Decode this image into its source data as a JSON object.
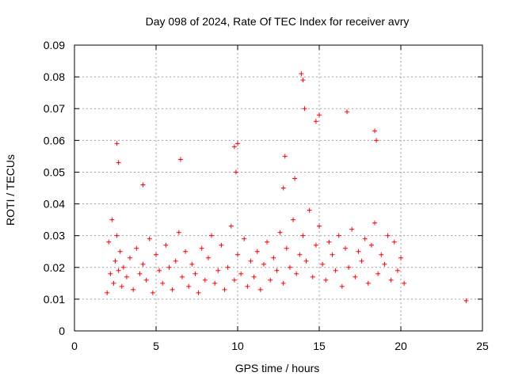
{
  "chart_data": {
    "type": "scatter",
    "title": "Day 098 of 2024, Rate Of TEC Index for receiver avry",
    "xlabel": "GPS time / hours",
    "ylabel": "ROTI / TECUs",
    "xlim": [
      0,
      25
    ],
    "ylim": [
      0,
      0.09
    ],
    "xticks": [
      "0",
      "5",
      "10",
      "15",
      "20",
      "25"
    ],
    "yticks": [
      "0",
      "0.01",
      "0.02",
      "0.03",
      "0.04",
      "0.05",
      "0.06",
      "0.07",
      "0.08",
      "0.09"
    ],
    "grid": true,
    "marker": "plus",
    "color": "#ff0000",
    "series": [
      {
        "x": [
          2.0,
          2.1,
          2.2,
          2.3,
          2.4,
          2.5,
          2.6,
          2.7,
          2.8,
          2.9,
          3.0,
          3.2,
          3.4,
          3.6,
          3.8,
          4.0,
          4.2,
          4.4,
          4.6,
          4.8,
          5.0,
          5.2,
          5.4,
          5.6,
          5.8,
          6.0,
          6.2,
          6.4,
          6.6,
          6.8,
          7.0,
          7.2,
          7.4,
          7.6,
          7.8,
          8.0,
          8.2,
          8.4,
          8.6,
          8.8,
          9.0,
          9.2,
          9.4,
          9.6,
          9.8,
          10.0,
          10.2,
          10.4,
          10.6,
          10.8,
          11.0,
          11.2,
          11.4,
          11.6,
          11.8,
          12.0,
          12.2,
          12.4,
          12.6,
          12.8,
          13.0,
          13.2,
          13.4,
          13.6,
          13.8,
          14.0,
          14.2,
          14.4,
          14.6,
          14.8,
          15.0,
          15.2,
          15.4,
          15.6,
          15.8,
          16.0,
          16.2,
          16.4,
          16.6,
          16.8,
          17.0,
          17.2,
          17.4,
          17.6,
          17.8,
          18.0,
          18.2,
          18.4,
          18.6,
          18.8,
          19.0,
          19.2,
          19.4,
          19.6,
          19.8,
          20.0,
          20.2,
          2.6,
          2.7,
          6.5,
          9.8,
          10.0,
          12.9,
          13.9,
          14.0,
          14.1,
          14.8,
          15.0,
          16.7,
          18.4,
          18.5,
          4.2,
          9.9,
          12.8,
          13.5,
          24.0
        ],
        "y": [
          0.012,
          0.028,
          0.018,
          0.035,
          0.015,
          0.022,
          0.03,
          0.019,
          0.025,
          0.014,
          0.02,
          0.017,
          0.023,
          0.013,
          0.026,
          0.018,
          0.021,
          0.016,
          0.029,
          0.012,
          0.024,
          0.019,
          0.015,
          0.027,
          0.02,
          0.013,
          0.022,
          0.031,
          0.017,
          0.025,
          0.014,
          0.021,
          0.018,
          0.012,
          0.026,
          0.016,
          0.023,
          0.03,
          0.015,
          0.019,
          0.027,
          0.013,
          0.02,
          0.033,
          0.016,
          0.024,
          0.018,
          0.029,
          0.014,
          0.022,
          0.017,
          0.025,
          0.013,
          0.021,
          0.028,
          0.016,
          0.023,
          0.019,
          0.031,
          0.015,
          0.026,
          0.02,
          0.035,
          0.018,
          0.024,
          0.03,
          0.022,
          0.038,
          0.017,
          0.027,
          0.033,
          0.021,
          0.016,
          0.028,
          0.024,
          0.019,
          0.03,
          0.014,
          0.026,
          0.02,
          0.032,
          0.017,
          0.025,
          0.022,
          0.029,
          0.015,
          0.027,
          0.034,
          0.018,
          0.024,
          0.021,
          0.03,
          0.016,
          0.028,
          0.019,
          0.023,
          0.015,
          0.059,
          0.053,
          0.054,
          0.058,
          0.059,
          0.055,
          0.081,
          0.079,
          0.07,
          0.066,
          0.068,
          0.069,
          0.063,
          0.06,
          0.046,
          0.05,
          0.045,
          0.048,
          0.0095
        ]
      }
    ]
  }
}
